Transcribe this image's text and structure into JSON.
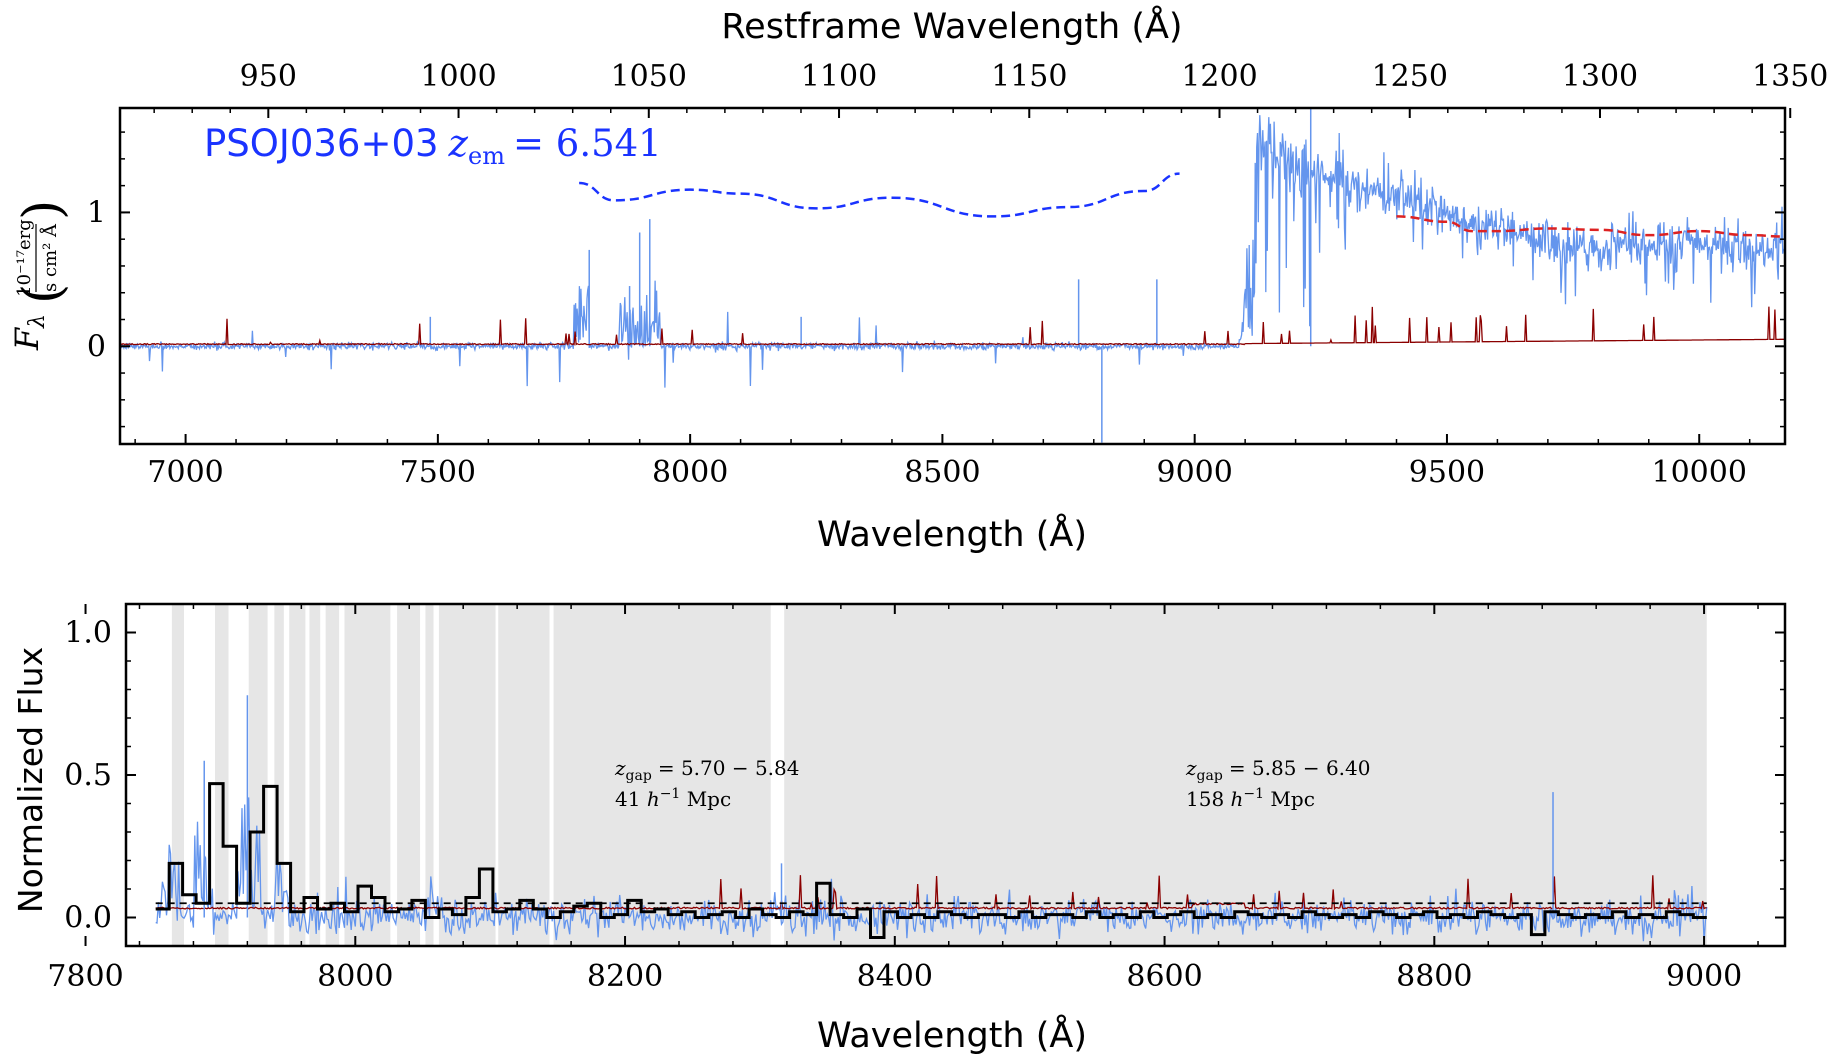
{
  "chart_data": [
    {
      "type": "line",
      "title": "",
      "xlabel": "Wavelength (Å)",
      "top_xlabel": "Restframe Wavelength (Å)",
      "ylabel_symbol": "F",
      "ylabel_sub": "λ",
      "ylabel_unit_num": "10⁻¹⁷erg",
      "ylabel_unit_den": "s cm² Å",
      "xlim": [
        6870,
        10170
      ],
      "ylim": [
        -0.73,
        1.78
      ],
      "xticks": [
        7000,
        7500,
        8000,
        8500,
        9000,
        9500,
        10000
      ],
      "xtick_labels": [
        "7000",
        "7500",
        "8000",
        "8500",
        "9000",
        "9500",
        "10000"
      ],
      "yticks": [
        0,
        1
      ],
      "ytick_labels": [
        "0",
        "1"
      ],
      "top_xticks": [
        950,
        1000,
        1050,
        1100,
        1150,
        1200,
        1250,
        1300,
        1350
      ],
      "top_xtick_labels": [
        "950",
        "1000",
        "1050",
        "1100",
        "1150",
        "1200",
        "1250",
        "1300",
        "1350"
      ],
      "redshift": 6.541,
      "annotation": {
        "name": "PSOJ036+03",
        "zlabel": "z",
        "zsub": "em",
        "zvalue": "= 6.541"
      },
      "series": [
        {
          "role": "flux",
          "color": "#6495ed"
        },
        {
          "role": "noise",
          "color": "#8b0000"
        },
        {
          "role": "continuum_red",
          "color": "#dd2222",
          "style": "dashed",
          "x": [
            9400,
            9500,
            9550,
            9600,
            9700,
            9800,
            9900,
            10000,
            10100,
            10170
          ],
          "y": [
            0.97,
            0.93,
            0.86,
            0.86,
            0.88,
            0.87,
            0.83,
            0.86,
            0.83,
            0.82
          ]
        },
        {
          "role": "continuum_blue",
          "color": "#1a33ff",
          "style": "dashed",
          "x": [
            7780,
            7850,
            8000,
            8100,
            8250,
            8400,
            8600,
            8750,
            8900,
            8970
          ],
          "y": [
            1.22,
            1.09,
            1.17,
            1.14,
            1.03,
            1.11,
            0.97,
            1.04,
            1.16,
            1.29
          ]
        }
      ]
    },
    {
      "type": "line",
      "title": "",
      "xlabel": "Wavelength (Å)",
      "ylabel": "Normalized Flux",
      "xlim": [
        7830,
        9060
      ],
      "ylim": [
        -0.1,
        1.1
      ],
      "xticks": [
        7800,
        8000,
        8200,
        8400,
        8600,
        8800,
        9000
      ],
      "xtick_labels": [
        "7800",
        "8000",
        "8200",
        "8400",
        "8600",
        "8800",
        "9000"
      ],
      "yticks": [
        0.0,
        0.5,
        1.0
      ],
      "ytick_labels": [
        "0.0",
        "0.5",
        "1.0"
      ],
      "dashed_threshold": 0.05,
      "gap_annotations": [
        {
          "zlabel": "z",
          "zsub": "gap",
          "range": "= 5.70 − 5.84",
          "length_pre": "41 ",
          "length_h": "h",
          "length_exp": "−1",
          "length_unit": " Mpc"
        },
        {
          "zlabel": "z",
          "zsub": "gap",
          "range": "= 5.85 − 6.40",
          "length_pre": "158 ",
          "length_h": "h",
          "length_exp": "−1",
          "length_unit": " Mpc"
        }
      ],
      "gap_regions": [
        [
          7864,
          7873
        ],
        [
          7896,
          7906
        ],
        [
          7921,
          7935
        ],
        [
          7940,
          7947
        ],
        [
          7951,
          7963
        ],
        [
          7966,
          7974
        ],
        [
          7978,
          7988
        ],
        [
          7992,
          8026
        ],
        [
          8031,
          8048
        ],
        [
          8052,
          8058
        ],
        [
          8062,
          8104
        ],
        [
          8106,
          8144
        ],
        [
          8147,
          8308
        ],
        [
          8318,
          9002
        ]
      ],
      "binned_flux": [
        0.03,
        0.19,
        0.08,
        0.05,
        0.47,
        0.25,
        0.05,
        0.3,
        0.46,
        0.19,
        0.02,
        0.07,
        0.03,
        0.05,
        0.02,
        0.11,
        0.07,
        0.02,
        0.03,
        0.06,
        0.0,
        0.03,
        0.01,
        0.07,
        0.17,
        0.02,
        0.03,
        0.06,
        0.03,
        0.0,
        0.02,
        0.04,
        0.05,
        0.0,
        0.01,
        0.06,
        0.02,
        0.03,
        0.01,
        0.02,
        0.0,
        0.01,
        0.02,
        0.0,
        0.03,
        0.01,
        0.0,
        0.02,
        0.01,
        0.12,
        0.01,
        0.0,
        0.03,
        -0.07,
        0.02,
        0.0,
        0.01,
        0.0,
        0.02,
        0.01,
        0.0,
        0.01,
        0.01,
        0.0,
        0.02,
        0.0,
        0.01,
        0.01,
        0.0,
        0.02,
        0.0,
        0.01,
        0.0,
        0.02,
        0.0,
        0.01,
        0.02,
        0.0,
        0.01,
        0.0,
        0.02,
        0.01,
        0.0,
        0.01,
        0.0,
        0.02,
        0.01,
        0.0,
        0.01,
        0.0,
        0.02,
        0.01,
        0.0,
        0.01,
        0.02,
        0.0,
        0.01,
        0.0,
        0.02,
        0.01,
        0.0,
        0.01,
        -0.06,
        0.02,
        0.01,
        0.0,
        0.01,
        0.0,
        0.02,
        0.0,
        0.01,
        0.0,
        0.02,
        0.01,
        0.0
      ],
      "binned_x_start": 7852,
      "binned_x_end": 9002
    }
  ]
}
